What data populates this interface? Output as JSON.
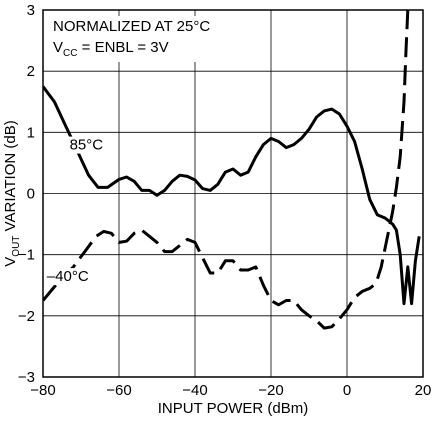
{
  "chart_data": {
    "type": "line",
    "title": "",
    "xlabel": "INPUT POWER (dBm)",
    "ylabel": {
      "main": "V",
      "sub": "OUT",
      "rest": " VARIATION (dB)"
    },
    "xlim": [
      -80,
      20
    ],
    "ylim": [
      -3,
      3
    ],
    "xticks": [
      -80,
      -60,
      -40,
      -20,
      0,
      20
    ],
    "yticks": [
      -3,
      -2,
      -1,
      0,
      1,
      2,
      3
    ],
    "grid": true,
    "annotations": {
      "line1": "NORMALIZED AT 25°C",
      "line2_main": "V",
      "line2_sub": "CC",
      "line2_rest": " = ENBL = 3V"
    },
    "series": [
      {
        "name": "85°C",
        "style": "solid",
        "color": "#000000",
        "x": [
          -80,
          -77,
          -74,
          -71,
          -68,
          -65.5,
          -63,
          -60,
          -58,
          -56,
          -54,
          -52,
          -50,
          -48,
          -46,
          -44,
          -42,
          -40,
          -38,
          -36,
          -34,
          -32,
          -30,
          -28,
          -26,
          -24,
          -22,
          -20,
          -18,
          -16,
          -14,
          -12,
          -10,
          -8,
          -6,
          -4,
          -2,
          0,
          2,
          4,
          6,
          8,
          10,
          11,
          12,
          13,
          14,
          15,
          16,
          17,
          18,
          19
        ],
        "y": [
          1.75,
          1.5,
          1.1,
          0.7,
          0.3,
          0.1,
          0.1,
          0.23,
          0.27,
          0.2,
          0.05,
          0.05,
          -0.03,
          0.05,
          0.2,
          0.3,
          0.28,
          0.22,
          0.08,
          0.05,
          0.15,
          0.35,
          0.4,
          0.3,
          0.35,
          0.6,
          0.8,
          0.9,
          0.85,
          0.75,
          0.8,
          0.9,
          1.05,
          1.25,
          1.35,
          1.38,
          1.3,
          1.1,
          0.85,
          0.4,
          -0.1,
          -0.35,
          -0.4,
          -0.45,
          -0.5,
          -0.6,
          -1.0,
          -1.8,
          -1.2,
          -1.8,
          -1.1,
          -0.7
        ]
      },
      {
        "name": "–40°C",
        "style": "dashed",
        "color": "#000000",
        "x": [
          -80,
          -76,
          -72,
          -69,
          -66,
          -64,
          -62,
          -60,
          -58,
          -56,
          -54,
          -52,
          -50,
          -48,
          -46,
          -44,
          -42,
          -40,
          -38,
          -36,
          -34,
          -32,
          -30,
          -28,
          -26,
          -24,
          -22,
          -20,
          -18,
          -16,
          -14,
          -12,
          -10,
          -8,
          -6,
          -4,
          -2,
          0,
          2,
          4,
          6,
          7,
          8,
          9,
          10,
          11,
          12,
          13,
          14,
          15,
          15.5,
          16
        ],
        "y": [
          -1.75,
          -1.45,
          -1.2,
          -0.95,
          -0.7,
          -0.62,
          -0.65,
          -0.8,
          -0.78,
          -0.65,
          -0.6,
          -0.7,
          -0.8,
          -0.95,
          -0.95,
          -0.85,
          -0.75,
          -0.8,
          -1.05,
          -1.3,
          -1.3,
          -1.1,
          -1.1,
          -1.25,
          -1.25,
          -1.2,
          -1.5,
          -1.75,
          -1.82,
          -1.75,
          -1.75,
          -1.9,
          -2.0,
          -2.08,
          -2.2,
          -2.18,
          -2.05,
          -1.9,
          -1.7,
          -1.6,
          -1.55,
          -1.5,
          -1.4,
          -1.2,
          -0.9,
          -0.6,
          -0.3,
          0.1,
          0.6,
          1.5,
          2.3,
          3.0
        ]
      }
    ],
    "series_labels": [
      {
        "series": 0,
        "x": -73,
        "y": 0.8
      },
      {
        "series": 1,
        "x": -79,
        "y": -1.35
      }
    ]
  }
}
